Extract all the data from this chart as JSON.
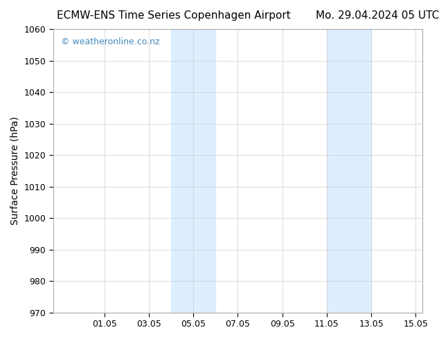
{
  "title_left": "ECMW-ENS Time Series Copenhagen Airport",
  "title_right": "Mo. 29.04.2024 05 UTC",
  "ylabel": "Surface Pressure (hPa)",
  "xlim": [
    29.0,
    15.05
  ],
  "ylim": [
    970,
    1060
  ],
  "yticks": [
    970,
    980,
    990,
    1000,
    1010,
    1020,
    1030,
    1040,
    1050,
    1060
  ],
  "xtick_labels": [
    "01.05",
    "03.05",
    "05.05",
    "07.05",
    "09.05",
    "11.05",
    "13.05",
    "15.05"
  ],
  "xtick_positions": [
    1.0,
    3.0,
    5.0,
    7.0,
    9.0,
    11.0,
    13.0,
    15.0
  ],
  "shaded_bands": [
    {
      "xmin": 4.5,
      "xmax": 5.75
    },
    {
      "xmin": 11.0,
      "xmax": 12.5
    }
  ],
  "shade_color": "#ddeeff",
  "background_color": "#ffffff",
  "plot_bg_color": "#ffffff",
  "grid_color": "#cccccc",
  "watermark_text": "© weatheronline.co.nz",
  "watermark_color": "#4488bb",
  "title_fontsize": 11,
  "axis_label_fontsize": 10,
  "tick_fontsize": 9,
  "watermark_fontsize": 9
}
